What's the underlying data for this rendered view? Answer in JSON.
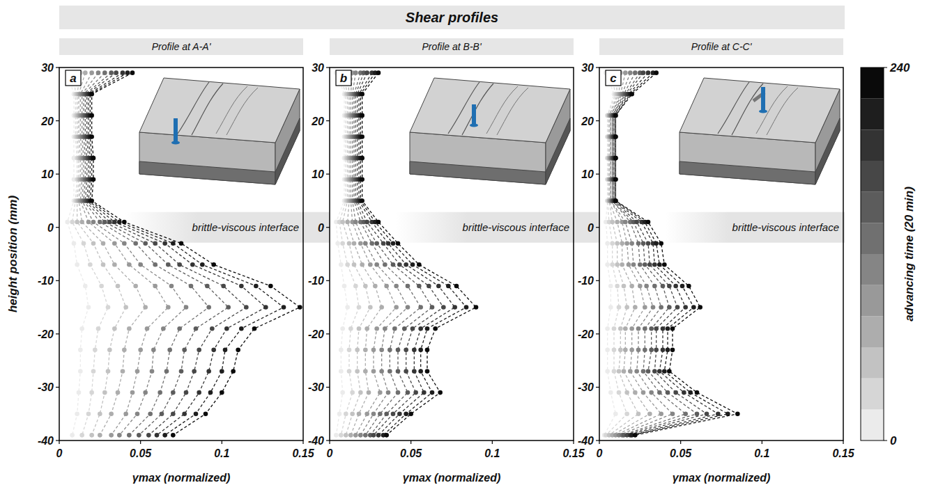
{
  "header": "Shear profiles",
  "colorbar": {
    "label": "advancing time (20 min)",
    "lim": [
      0,
      240
    ],
    "ticks": [
      0,
      240
    ],
    "step": 20
  },
  "chart_data": [
    {
      "type": "line",
      "panel": "a",
      "title": "Profile at A-A'",
      "orientation": "horizontal",
      "x_label": "γmax (normalized)",
      "y_label": "height position (mm)",
      "xlim": [
        0,
        0.15
      ],
      "xticks": [
        0,
        0.05,
        0.1,
        0.15
      ],
      "ylim": [
        -40,
        30
      ],
      "yticks": [
        -40,
        -30,
        -20,
        -10,
        0,
        10,
        20,
        30
      ],
      "marker": "circle",
      "line_style": "dashed",
      "interface": {
        "label": "brittle-viscous interface",
        "height": 0
      },
      "y": [
        29,
        25,
        21,
        17,
        13,
        9,
        5,
        1,
        -3,
        -7,
        -11,
        -15,
        -19,
        -23,
        -27,
        -31,
        -35,
        -39
      ],
      "series": [
        {
          "time": 20,
          "values": [
            0.005,
            0.009,
            0.009,
            0.009,
            0.009,
            0.009,
            0.009,
            0.005,
            0.009,
            0.011,
            0.016,
            0.018,
            0.014,
            0.013,
            0.013,
            0.012,
            0.011,
            0.008
          ]
        },
        {
          "time": 40,
          "values": [
            0.009,
            0.01,
            0.01,
            0.01,
            0.011,
            0.011,
            0.01,
            0.008,
            0.015,
            0.019,
            0.026,
            0.03,
            0.024,
            0.022,
            0.021,
            0.02,
            0.018,
            0.014
          ]
        },
        {
          "time": 60,
          "values": [
            0.013,
            0.011,
            0.011,
            0.011,
            0.012,
            0.012,
            0.011,
            0.011,
            0.021,
            0.027,
            0.036,
            0.041,
            0.034,
            0.031,
            0.03,
            0.028,
            0.025,
            0.02
          ]
        },
        {
          "time": 80,
          "values": [
            0.016,
            0.012,
            0.012,
            0.012,
            0.013,
            0.013,
            0.012,
            0.014,
            0.027,
            0.034,
            0.047,
            0.053,
            0.043,
            0.04,
            0.039,
            0.036,
            0.032,
            0.025
          ]
        },
        {
          "time": 100,
          "values": [
            0.02,
            0.013,
            0.013,
            0.013,
            0.014,
            0.014,
            0.013,
            0.018,
            0.034,
            0.043,
            0.059,
            0.067,
            0.054,
            0.05,
            0.048,
            0.045,
            0.041,
            0.032
          ]
        },
        {
          "time": 120,
          "values": [
            0.024,
            0.014,
            0.014,
            0.014,
            0.015,
            0.015,
            0.014,
            0.021,
            0.04,
            0.05,
            0.069,
            0.078,
            0.064,
            0.058,
            0.057,
            0.053,
            0.048,
            0.037
          ]
        },
        {
          "time": 140,
          "values": [
            0.028,
            0.015,
            0.015,
            0.015,
            0.016,
            0.016,
            0.015,
            0.025,
            0.047,
            0.059,
            0.081,
            0.092,
            0.074,
            0.068,
            0.066,
            0.062,
            0.056,
            0.043
          ]
        },
        {
          "time": 160,
          "values": [
            0.032,
            0.016,
            0.016,
            0.016,
            0.017,
            0.017,
            0.016,
            0.028,
            0.053,
            0.067,
            0.091,
            0.104,
            0.084,
            0.077,
            0.075,
            0.07,
            0.063,
            0.049
          ]
        },
        {
          "time": 180,
          "values": [
            0.035,
            0.017,
            0.017,
            0.017,
            0.018,
            0.018,
            0.017,
            0.031,
            0.059,
            0.074,
            0.101,
            0.115,
            0.094,
            0.086,
            0.083,
            0.078,
            0.07,
            0.055
          ]
        },
        {
          "time": 200,
          "values": [
            0.039,
            0.018,
            0.018,
            0.018,
            0.019,
            0.019,
            0.018,
            0.034,
            0.065,
            0.082,
            0.112,
            0.127,
            0.103,
            0.095,
            0.092,
            0.086,
            0.077,
            0.06
          ]
        },
        {
          "time": 220,
          "values": [
            0.042,
            0.019,
            0.019,
            0.019,
            0.02,
            0.02,
            0.019,
            0.037,
            0.07,
            0.088,
            0.121,
            0.138,
            0.112,
            0.102,
            0.1,
            0.093,
            0.084,
            0.065
          ]
        },
        {
          "time": 240,
          "values": [
            0.045,
            0.02,
            0.02,
            0.02,
            0.021,
            0.021,
            0.02,
            0.04,
            0.075,
            0.095,
            0.13,
            0.148,
            0.12,
            0.11,
            0.107,
            0.1,
            0.09,
            0.07
          ]
        }
      ]
    },
    {
      "type": "line",
      "panel": "b",
      "title": "Profile at B-B'",
      "orientation": "horizontal",
      "x_label": "γmax (normalized)",
      "xlim": [
        0,
        0.15
      ],
      "xticks": [
        0,
        0.05,
        0.1,
        0.15
      ],
      "ylim": [
        -40,
        30
      ],
      "yticks": [
        -40,
        -30,
        -20,
        -10,
        0,
        10,
        20,
        30
      ],
      "marker": "circle",
      "line_style": "dashed",
      "interface": {
        "label": "brittle-viscous interface",
        "height": 0
      },
      "y": [
        29,
        25,
        21,
        17,
        13,
        9,
        5,
        1,
        -3,
        -7,
        -11,
        -15,
        -19,
        -23,
        -27,
        -31,
        -35,
        -39
      ],
      "series": [
        {
          "time": 20,
          "values": [
            0.004,
            0.009,
            0.009,
            0.009,
            0.009,
            0.009,
            0.009,
            0.004,
            0.005,
            0.007,
            0.009,
            0.011,
            0.008,
            0.007,
            0.007,
            0.008,
            0.006,
            0.004
          ]
        },
        {
          "time": 40,
          "values": [
            0.006,
            0.01,
            0.01,
            0.01,
            0.01,
            0.01,
            0.01,
            0.006,
            0.008,
            0.011,
            0.016,
            0.018,
            0.013,
            0.012,
            0.012,
            0.014,
            0.01,
            0.007
          ]
        },
        {
          "time": 60,
          "values": [
            0.008,
            0.011,
            0.011,
            0.011,
            0.011,
            0.011,
            0.011,
            0.008,
            0.012,
            0.015,
            0.022,
            0.025,
            0.018,
            0.017,
            0.017,
            0.019,
            0.014,
            0.01
          ]
        },
        {
          "time": 80,
          "values": [
            0.011,
            0.012,
            0.012,
            0.012,
            0.012,
            0.012,
            0.012,
            0.011,
            0.015,
            0.02,
            0.028,
            0.032,
            0.023,
            0.022,
            0.022,
            0.024,
            0.018,
            0.013
          ]
        },
        {
          "time": 100,
          "values": [
            0.014,
            0.013,
            0.013,
            0.013,
            0.013,
            0.013,
            0.013,
            0.014,
            0.019,
            0.025,
            0.035,
            0.041,
            0.029,
            0.027,
            0.027,
            0.031,
            0.023,
            0.016
          ]
        },
        {
          "time": 120,
          "values": [
            0.016,
            0.014,
            0.014,
            0.014,
            0.014,
            0.014,
            0.014,
            0.016,
            0.022,
            0.029,
            0.041,
            0.048,
            0.034,
            0.032,
            0.032,
            0.036,
            0.027,
            0.019
          ]
        },
        {
          "time": 140,
          "values": [
            0.019,
            0.015,
            0.015,
            0.015,
            0.015,
            0.015,
            0.015,
            0.019,
            0.026,
            0.034,
            0.048,
            0.056,
            0.04,
            0.037,
            0.037,
            0.042,
            0.031,
            0.022
          ]
        },
        {
          "time": 160,
          "values": [
            0.021,
            0.016,
            0.016,
            0.016,
            0.016,
            0.016,
            0.016,
            0.021,
            0.029,
            0.039,
            0.055,
            0.063,
            0.046,
            0.042,
            0.042,
            0.048,
            0.035,
            0.025
          ]
        },
        {
          "time": 180,
          "values": [
            0.023,
            0.017,
            0.017,
            0.017,
            0.017,
            0.017,
            0.017,
            0.023,
            0.033,
            0.043,
            0.061,
            0.07,
            0.051,
            0.047,
            0.047,
            0.053,
            0.039,
            0.027
          ]
        },
        {
          "time": 200,
          "values": [
            0.026,
            0.018,
            0.018,
            0.018,
            0.018,
            0.018,
            0.018,
            0.026,
            0.036,
            0.047,
            0.067,
            0.077,
            0.056,
            0.052,
            0.052,
            0.058,
            0.043,
            0.03
          ]
        },
        {
          "time": 220,
          "values": [
            0.028,
            0.019,
            0.019,
            0.019,
            0.019,
            0.019,
            0.019,
            0.028,
            0.039,
            0.051,
            0.073,
            0.084,
            0.06,
            0.056,
            0.056,
            0.063,
            0.047,
            0.033
          ]
        },
        {
          "time": 240,
          "values": [
            0.03,
            0.02,
            0.02,
            0.02,
            0.02,
            0.02,
            0.02,
            0.03,
            0.042,
            0.055,
            0.078,
            0.09,
            0.065,
            0.06,
            0.06,
            0.068,
            0.05,
            0.035
          ]
        }
      ]
    },
    {
      "type": "line",
      "panel": "c",
      "title": "Profile at C-C'",
      "orientation": "horizontal",
      "x_label": "γmax (normalized)",
      "xlim": [
        0,
        0.15
      ],
      "xticks": [
        0,
        0.05,
        0.1,
        0.15
      ],
      "ylim": [
        -40,
        30
      ],
      "yticks": [
        -40,
        -30,
        -20,
        -10,
        0,
        10,
        20,
        30
      ],
      "marker": "circle",
      "line_style": "dashed",
      "interface": {
        "label": "brittle-viscous interface",
        "height": 0
      },
      "y": [
        29,
        25,
        21,
        17,
        13,
        9,
        5,
        1,
        -3,
        -7,
        -11,
        -15,
        -19,
        -23,
        -27,
        -31,
        -35,
        -39
      ],
      "series": [
        {
          "time": 20,
          "values": [
            0.004,
            0.009,
            0.005,
            0.005,
            0.005,
            0.005,
            0.005,
            0.004,
            0.005,
            0.005,
            0.007,
            0.007,
            0.005,
            0.005,
            0.005,
            0.007,
            0.01,
            0.003
          ]
        },
        {
          "time": 40,
          "values": [
            0.007,
            0.01,
            0.005,
            0.005,
            0.005,
            0.005,
            0.005,
            0.006,
            0.008,
            0.008,
            0.011,
            0.012,
            0.009,
            0.009,
            0.009,
            0.012,
            0.017,
            0.004
          ]
        },
        {
          "time": 60,
          "values": [
            0.01,
            0.011,
            0.006,
            0.006,
            0.006,
            0.006,
            0.006,
            0.008,
            0.011,
            0.011,
            0.015,
            0.017,
            0.013,
            0.013,
            0.012,
            0.017,
            0.024,
            0.006
          ]
        },
        {
          "time": 80,
          "values": [
            0.013,
            0.012,
            0.006,
            0.006,
            0.006,
            0.006,
            0.006,
            0.011,
            0.014,
            0.014,
            0.02,
            0.022,
            0.016,
            0.016,
            0.015,
            0.022,
            0.031,
            0.008
          ]
        },
        {
          "time": 100,
          "values": [
            0.016,
            0.013,
            0.007,
            0.007,
            0.007,
            0.007,
            0.007,
            0.014,
            0.017,
            0.018,
            0.025,
            0.028,
            0.02,
            0.02,
            0.019,
            0.027,
            0.038,
            0.01
          ]
        },
        {
          "time": 120,
          "values": [
            0.019,
            0.014,
            0.007,
            0.007,
            0.007,
            0.007,
            0.007,
            0.016,
            0.02,
            0.021,
            0.029,
            0.033,
            0.024,
            0.024,
            0.023,
            0.032,
            0.045,
            0.012
          ]
        },
        {
          "time": 140,
          "values": [
            0.022,
            0.015,
            0.008,
            0.008,
            0.008,
            0.008,
            0.008,
            0.019,
            0.024,
            0.025,
            0.034,
            0.038,
            0.028,
            0.028,
            0.027,
            0.037,
            0.053,
            0.014
          ]
        },
        {
          "time": 160,
          "values": [
            0.025,
            0.016,
            0.008,
            0.008,
            0.008,
            0.008,
            0.008,
            0.021,
            0.027,
            0.028,
            0.039,
            0.043,
            0.032,
            0.032,
            0.03,
            0.042,
            0.06,
            0.015
          ]
        },
        {
          "time": 180,
          "values": [
            0.027,
            0.017,
            0.009,
            0.009,
            0.009,
            0.009,
            0.009,
            0.023,
            0.03,
            0.031,
            0.043,
            0.048,
            0.035,
            0.035,
            0.034,
            0.047,
            0.066,
            0.017
          ]
        },
        {
          "time": 200,
          "values": [
            0.03,
            0.018,
            0.009,
            0.009,
            0.009,
            0.009,
            0.009,
            0.026,
            0.033,
            0.034,
            0.047,
            0.053,
            0.039,
            0.039,
            0.037,
            0.052,
            0.073,
            0.019
          ]
        },
        {
          "time": 220,
          "values": [
            0.033,
            0.019,
            0.01,
            0.01,
            0.01,
            0.01,
            0.01,
            0.028,
            0.035,
            0.037,
            0.051,
            0.058,
            0.042,
            0.042,
            0.04,
            0.056,
            0.079,
            0.02
          ]
        },
        {
          "time": 240,
          "values": [
            0.035,
            0.02,
            0.01,
            0.01,
            0.01,
            0.01,
            0.01,
            0.03,
            0.038,
            0.04,
            0.055,
            0.062,
            0.045,
            0.045,
            0.043,
            0.06,
            0.085,
            0.022
          ]
        }
      ]
    }
  ]
}
